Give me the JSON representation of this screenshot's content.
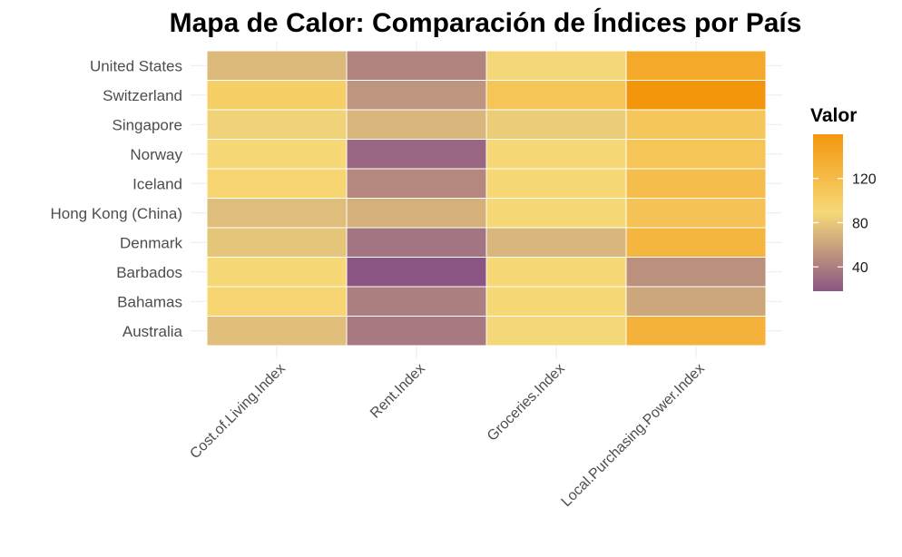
{
  "chart_data": {
    "type": "heatmap",
    "title": "Mapa de Calor: Comparación de Índices por País",
    "xlabel": "",
    "ylabel": "",
    "columns": [
      "Cost.of.Living.Index",
      "Rent.Index",
      "Groceries.Index",
      "Local.Purchasing.Power.Index"
    ],
    "rows": [
      "United States",
      "Switzerland",
      "Singapore",
      "Norway",
      "Iceland",
      "Hong Kong (China)",
      "Denmark",
      "Barbados",
      "Bahamas",
      "Australia"
    ],
    "values": [
      [
        72,
        43,
        88,
        140
      ],
      [
        100,
        52,
        110,
        160
      ],
      [
        85,
        70,
        82,
        108
      ],
      [
        90,
        27,
        90,
        110
      ],
      [
        93,
        45,
        90,
        118
      ],
      [
        74,
        67,
        90,
        112
      ],
      [
        78,
        34,
        70,
        126
      ],
      [
        90,
        18,
        90,
        50
      ],
      [
        93,
        40,
        90,
        62
      ],
      [
        75,
        37,
        88,
        130
      ]
    ],
    "legend": {
      "title": "Valor",
      "placement": "right",
      "ticks": [
        40,
        80,
        120
      ],
      "range": [
        18,
        160
      ],
      "colors": [
        "#8b5683",
        "#f6d978",
        "#f4960c"
      ]
    },
    "grid": true
  }
}
